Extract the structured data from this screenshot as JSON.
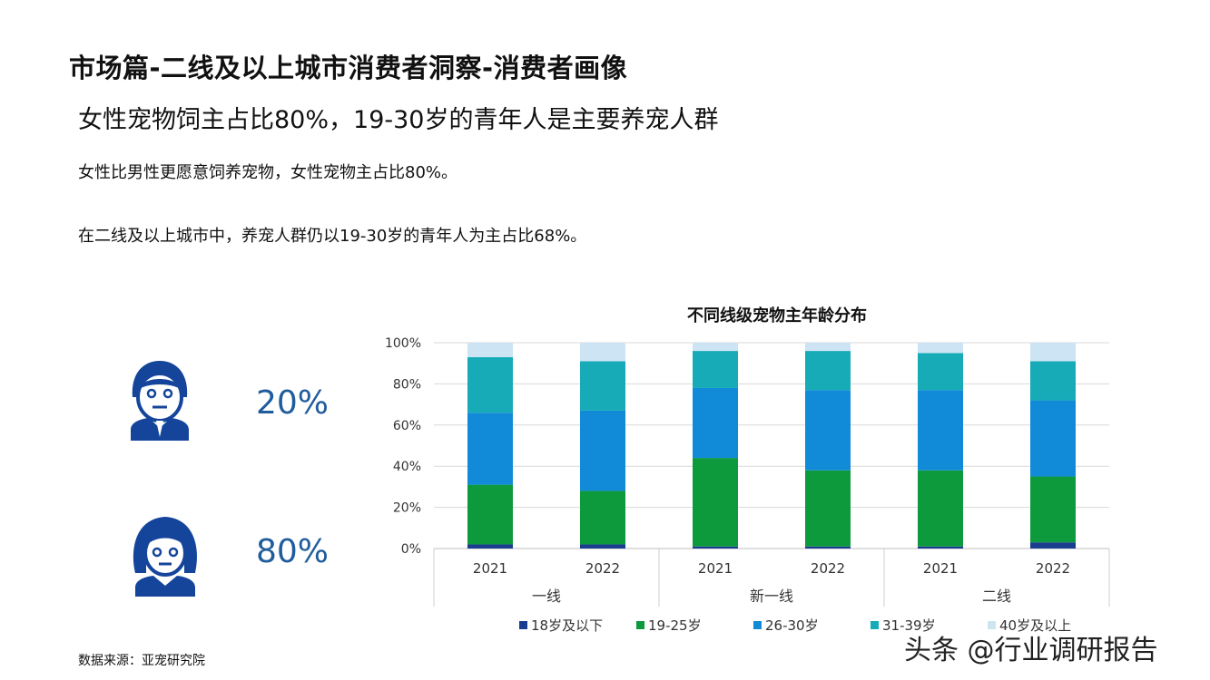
{
  "header": {
    "title": "市场篇-二线及以上城市消费者洞察-消费者画像",
    "subtitle": "女性宠物饲主占比80%，19-30岁的青年人是主要养宠人群"
  },
  "bullets": [
    "女性比男性更愿意饲养宠物，女性宠物主占比80%。",
    "在二线及以上城市中，养宠人群仍以19-30岁的青年人为主占比68%。"
  ],
  "gender": {
    "male": {
      "icon": "male-person-icon",
      "percent": "20%"
    },
    "female": {
      "icon": "female-person-icon",
      "percent": "80%"
    }
  },
  "colors": {
    "title_text": "#111111",
    "percent_text": "#1f5c9c",
    "icon_blue": "#14459b"
  },
  "source": "数据来源：亚宠研究院",
  "watermark": "头条 @行业调研报告",
  "chart_data": {
    "type": "bar",
    "stacked": true,
    "title": "不同线级宠物主年龄分布",
    "categories": [
      "2021",
      "2022",
      "2021",
      "2022",
      "2021",
      "2022"
    ],
    "groups": [
      {
        "label": "一线",
        "categories": [
          "2021",
          "2022"
        ]
      },
      {
        "label": "新一线",
        "categories": [
          "2021",
          "2022"
        ]
      },
      {
        "label": "二线",
        "categories": [
          "2021",
          "2022"
        ]
      }
    ],
    "series": [
      {
        "name": "18岁及以下",
        "color": "#1a3d8f",
        "values": [
          2,
          2,
          1,
          1,
          1,
          3
        ]
      },
      {
        "name": "19-25岁",
        "color": "#0c9a3c",
        "values": [
          29,
          26,
          43,
          37,
          37,
          32
        ]
      },
      {
        "name": "26-30岁",
        "color": "#118ad8",
        "values": [
          35,
          39,
          34,
          39,
          39,
          37
        ]
      },
      {
        "name": "31-39岁",
        "color": "#16abb6",
        "values": [
          27,
          24,
          18,
          19,
          18,
          19
        ]
      },
      {
        "name": "40岁及以上",
        "color": "#cde4f4",
        "values": [
          7,
          9,
          4,
          4,
          5,
          9
        ]
      }
    ],
    "ylim": [
      0,
      100
    ],
    "yticks": [
      "0%",
      "20%",
      "40%",
      "60%",
      "80%",
      "100%"
    ],
    "grid": true,
    "legend": "bottom"
  }
}
